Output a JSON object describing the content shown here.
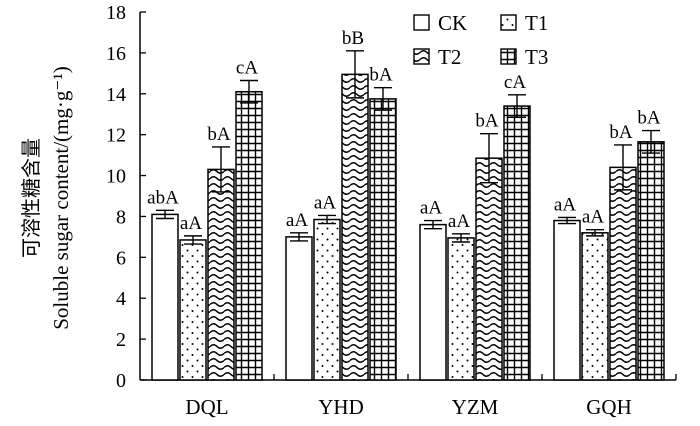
{
  "chart_data": {
    "type": "bar",
    "title": "",
    "ylabel_cn": "可溶性糖含量",
    "ylabel_en": "Soluble sugar content/(mg·g⁻¹)",
    "xlabel": "",
    "ylim": [
      0,
      18
    ],
    "yticks": [
      0,
      2,
      4,
      6,
      8,
      10,
      12,
      14,
      16,
      18
    ],
    "categories": [
      "DQL",
      "YHD",
      "YZM",
      "GQH"
    ],
    "legend_position": "top-right",
    "series": [
      {
        "name": "CK",
        "pattern": "blank",
        "values": [
          8.1,
          7.0,
          7.6,
          7.8
        ],
        "errors": [
          0.2,
          0.2,
          0.2,
          0.15
        ],
        "labels": [
          "abA",
          "aA",
          "aA",
          "aA"
        ]
      },
      {
        "name": "T1",
        "pattern": "dots",
        "values": [
          6.85,
          7.85,
          6.95,
          7.2
        ],
        "errors": [
          0.2,
          0.2,
          0.2,
          0.15
        ],
        "labels": [
          "aA",
          "aA",
          "aA",
          "aA"
        ]
      },
      {
        "name": "T2",
        "pattern": "waves",
        "values": [
          10.3,
          14.95,
          10.85,
          10.4
        ],
        "errors": [
          1.1,
          1.15,
          1.2,
          1.1
        ],
        "labels": [
          "bA",
          "bB",
          "bA",
          "bA"
        ]
      },
      {
        "name": "T3",
        "pattern": "grid",
        "values": [
          14.1,
          13.75,
          13.4,
          11.65
        ],
        "errors": [
          0.55,
          0.55,
          0.55,
          0.55
        ],
        "labels": [
          "cA",
          "bA",
          "cA",
          "bA"
        ]
      }
    ]
  }
}
